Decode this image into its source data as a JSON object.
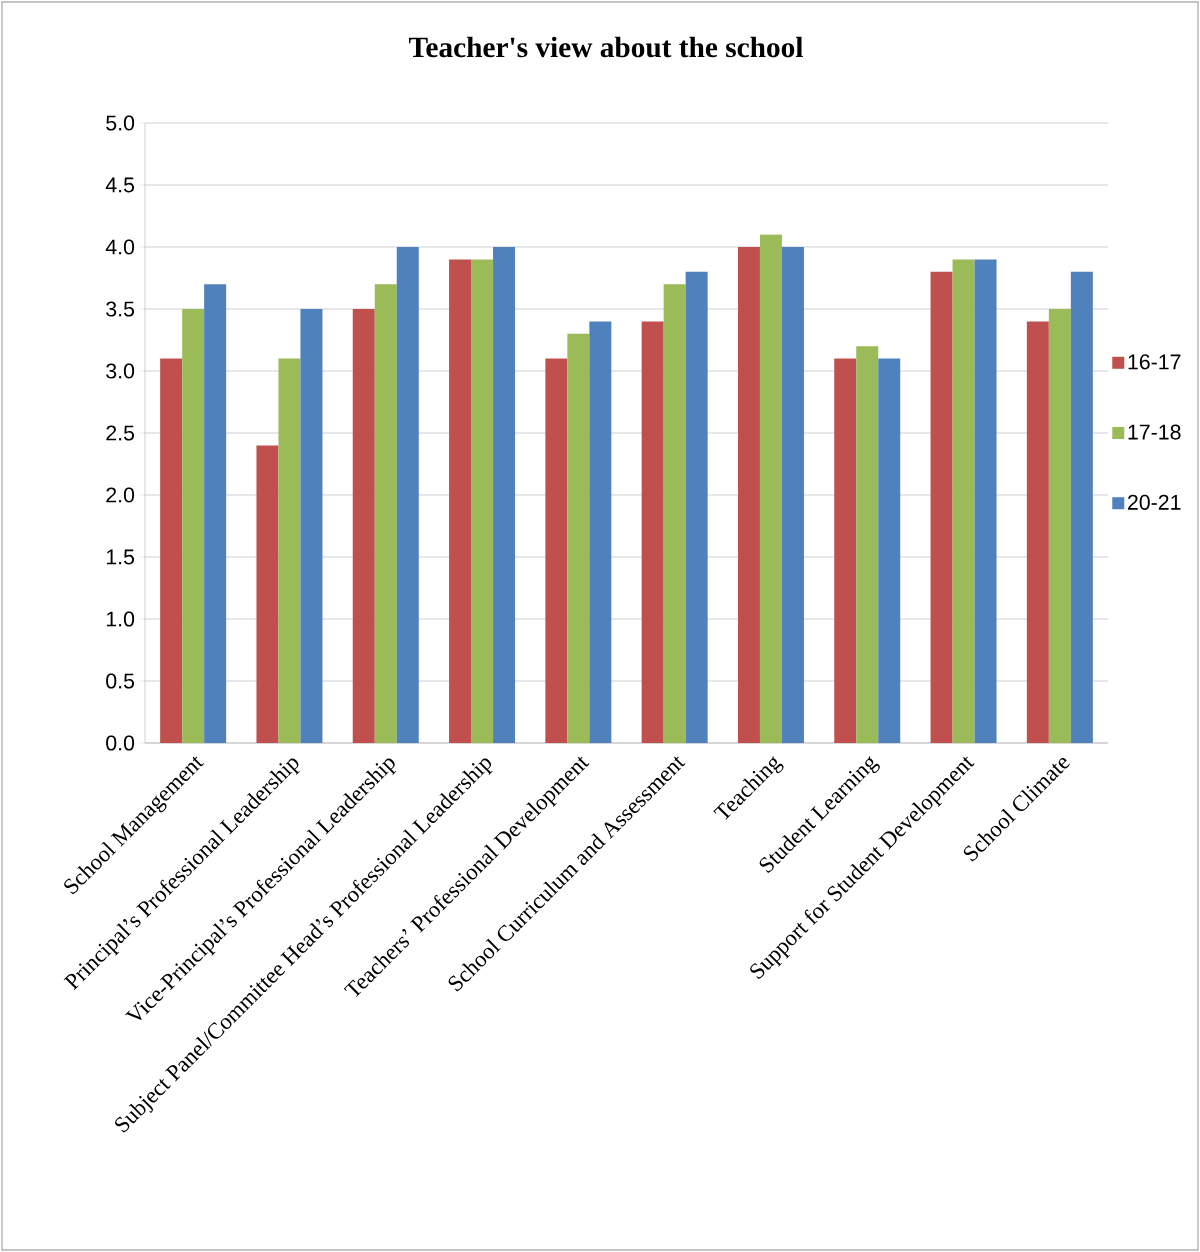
{
  "chart_data": {
    "type": "bar",
    "title": "Teacher's view about the school",
    "categories": [
      "School Management",
      "Principal’s Professional Leadership",
      "Vice-Principal’s Professional Leadership",
      "Subject Panel/Committee Head’s Professional Leadership",
      "Teachers’ Professional Development",
      "School Curriculum and Assessment",
      "Teaching",
      "Student Learning",
      "Support for Student Development",
      "School Climate"
    ],
    "series": [
      {
        "name": "16-17",
        "color": "#c0504d",
        "values": [
          3.1,
          2.4,
          3.5,
          3.9,
          3.1,
          3.4,
          4.0,
          3.1,
          3.8,
          3.4
        ]
      },
      {
        "name": "17-18",
        "color": "#9bbb59",
        "values": [
          3.5,
          3.1,
          3.7,
          3.9,
          3.3,
          3.7,
          4.1,
          3.2,
          3.9,
          3.5
        ]
      },
      {
        "name": "20-21",
        "color": "#4f81bd",
        "values": [
          3.7,
          3.5,
          4.0,
          4.0,
          3.4,
          3.8,
          4.0,
          3.1,
          3.9,
          3.8
        ]
      }
    ],
    "ylim": [
      0,
      5
    ],
    "yticks": [
      {
        "value": 0,
        "label": "0.0"
      },
      {
        "value": 0.5,
        "label": "0.5"
      },
      {
        "value": 1,
        "label": "1.0"
      },
      {
        "value": 1.5,
        "label": "1.5"
      },
      {
        "value": 2,
        "label": "2.0"
      },
      {
        "value": 2.5,
        "label": "2.5"
      },
      {
        "value": 3,
        "label": "3.0"
      },
      {
        "value": 3.5,
        "label": "3.5"
      },
      {
        "value": 4,
        "label": "4.0"
      },
      {
        "value": 4.5,
        "label": "4.5"
      },
      {
        "value": 5,
        "label": "5.0"
      }
    ],
    "grid": "y",
    "legend": "right"
  }
}
